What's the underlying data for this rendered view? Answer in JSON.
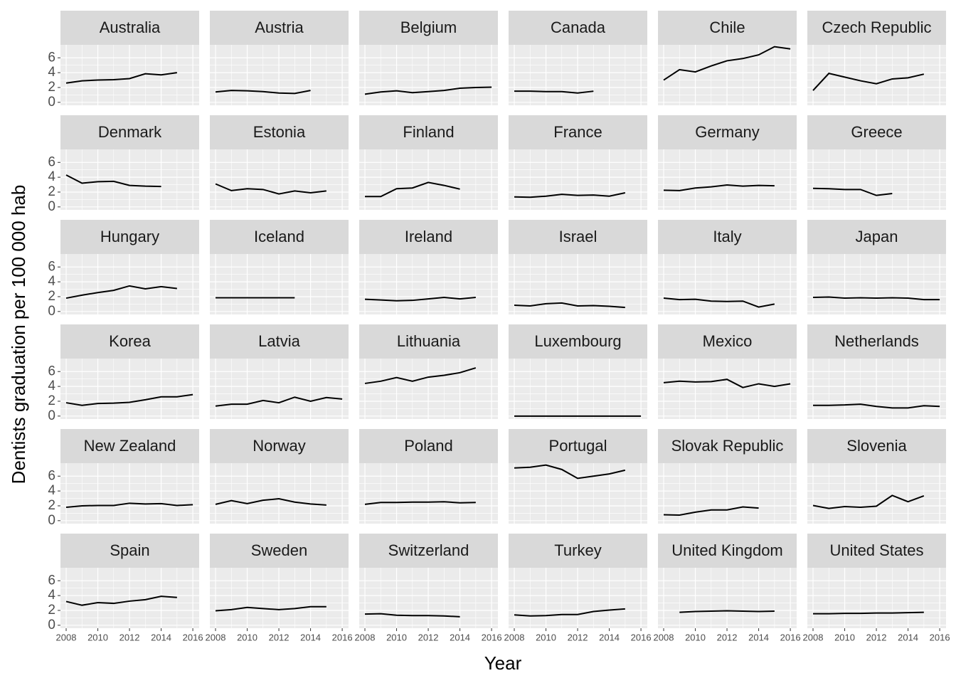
{
  "chart_data": {
    "type": "line",
    "xlabel": "Year",
    "ylabel": "Dentists graduation per 100 000 hab",
    "x": [
      2008,
      2009,
      2010,
      2011,
      2012,
      2013,
      2014,
      2015,
      2016
    ],
    "xlim": [
      2007.64,
      2016.4
    ],
    "xticks": [
      2008,
      2010,
      2012,
      2014,
      2016
    ],
    "ylim": [
      -0.4,
      7.75
    ],
    "yticks": [
      0,
      2,
      4,
      6
    ],
    "grid": true,
    "color": "#000000",
    "facets": [
      {
        "name": "Australia",
        "values": [
          2.6,
          2.9,
          3.0,
          3.05,
          3.2,
          3.85,
          3.7,
          4.0,
          null
        ]
      },
      {
        "name": "Austria",
        "values": [
          1.4,
          1.6,
          1.55,
          1.45,
          1.25,
          1.2,
          1.6,
          null,
          null
        ]
      },
      {
        "name": "Belgium",
        "values": [
          1.1,
          1.4,
          1.55,
          1.3,
          1.45,
          1.6,
          1.9,
          2.0,
          2.05
        ]
      },
      {
        "name": "Canada",
        "values": [
          1.5,
          1.5,
          1.45,
          1.45,
          1.25,
          1.5,
          null,
          null,
          null
        ]
      },
      {
        "name": "Chile",
        "values": [
          3.0,
          4.4,
          4.1,
          4.9,
          5.6,
          5.9,
          6.4,
          7.5,
          7.2
        ]
      },
      {
        "name": "Czech Republic",
        "values": [
          1.6,
          3.9,
          3.4,
          2.9,
          2.5,
          3.15,
          3.3,
          3.8,
          null
        ]
      },
      {
        "name": "Denmark",
        "values": [
          4.3,
          3.2,
          3.4,
          3.45,
          2.9,
          2.8,
          2.75,
          null,
          null
        ]
      },
      {
        "name": "Estonia",
        "values": [
          3.1,
          2.2,
          2.45,
          2.35,
          1.75,
          2.15,
          1.9,
          2.15,
          null
        ]
      },
      {
        "name": "Finland",
        "values": [
          1.4,
          1.4,
          2.45,
          2.55,
          3.3,
          2.9,
          2.4,
          null,
          null
        ]
      },
      {
        "name": "France",
        "values": [
          1.35,
          1.3,
          1.45,
          1.7,
          1.55,
          1.6,
          1.45,
          1.9,
          null
        ]
      },
      {
        "name": "Germany",
        "values": [
          2.25,
          2.2,
          2.55,
          2.7,
          2.95,
          2.8,
          2.9,
          2.85,
          null
        ]
      },
      {
        "name": "Greece",
        "values": [
          2.5,
          2.45,
          2.35,
          2.35,
          1.55,
          1.8,
          null,
          null,
          null
        ]
      },
      {
        "name": "Hungary",
        "values": [
          1.8,
          2.2,
          2.55,
          2.85,
          3.45,
          3.05,
          3.35,
          3.1,
          null
        ]
      },
      {
        "name": "Iceland",
        "values": [
          1.85,
          1.85,
          1.85,
          1.85,
          1.85,
          1.85,
          null,
          null,
          null
        ]
      },
      {
        "name": "Ireland",
        "values": [
          1.65,
          1.55,
          1.45,
          1.5,
          1.7,
          1.9,
          1.7,
          1.9,
          null
        ]
      },
      {
        "name": "Israel",
        "values": [
          0.85,
          0.75,
          1.05,
          1.15,
          0.75,
          0.8,
          0.7,
          0.55,
          null
        ]
      },
      {
        "name": "Italy",
        "values": [
          1.8,
          1.6,
          1.65,
          1.4,
          1.35,
          1.4,
          0.6,
          1.0,
          null
        ]
      },
      {
        "name": "Japan",
        "values": [
          1.9,
          1.95,
          1.8,
          1.85,
          1.8,
          1.85,
          1.8,
          1.6,
          1.6
        ]
      },
      {
        "name": "Korea",
        "values": [
          1.8,
          1.45,
          1.7,
          1.75,
          1.85,
          2.2,
          2.6,
          2.6,
          2.9
        ]
      },
      {
        "name": "Latvia",
        "values": [
          1.35,
          1.6,
          1.6,
          2.1,
          1.8,
          2.55,
          2.0,
          2.5,
          2.3
        ]
      },
      {
        "name": "Lithuania",
        "values": [
          4.4,
          4.7,
          5.2,
          4.7,
          5.25,
          5.5,
          5.85,
          6.5,
          null
        ]
      },
      {
        "name": "Luxembourg",
        "values": [
          0,
          0,
          0,
          0,
          0,
          0,
          0,
          0,
          0
        ]
      },
      {
        "name": "Mexico",
        "values": [
          4.5,
          4.7,
          4.6,
          4.65,
          4.95,
          3.85,
          4.35,
          4.0,
          4.35
        ]
      },
      {
        "name": "Netherlands",
        "values": [
          1.45,
          1.45,
          1.5,
          1.6,
          1.3,
          1.1,
          1.1,
          1.4,
          1.3
        ]
      },
      {
        "name": "New Zealand",
        "values": [
          1.8,
          2.0,
          2.05,
          2.05,
          2.35,
          2.25,
          2.3,
          2.05,
          2.15
        ]
      },
      {
        "name": "Norway",
        "values": [
          2.2,
          2.7,
          2.3,
          2.75,
          2.95,
          2.5,
          2.25,
          2.1,
          null
        ]
      },
      {
        "name": "Poland",
        "values": [
          2.2,
          2.45,
          2.45,
          2.5,
          2.5,
          2.55,
          2.4,
          2.45,
          null
        ]
      },
      {
        "name": "Portugal",
        "values": [
          7.1,
          7.2,
          7.5,
          6.9,
          5.7,
          6.0,
          6.3,
          6.8,
          null
        ]
      },
      {
        "name": "Slovak Republic",
        "values": [
          0.8,
          0.75,
          1.15,
          1.45,
          1.45,
          1.85,
          1.7,
          null,
          null
        ]
      },
      {
        "name": "Slovenia",
        "values": [
          2.05,
          1.65,
          1.9,
          1.8,
          1.95,
          3.4,
          2.55,
          3.35,
          null
        ]
      },
      {
        "name": "Spain",
        "values": [
          3.2,
          2.7,
          3.05,
          2.95,
          3.25,
          3.45,
          3.9,
          3.75,
          null
        ]
      },
      {
        "name": "Sweden",
        "values": [
          1.95,
          2.1,
          2.4,
          2.25,
          2.1,
          2.25,
          2.5,
          2.5,
          null
        ]
      },
      {
        "name": "Switzerland",
        "values": [
          1.5,
          1.55,
          1.35,
          1.3,
          1.3,
          1.25,
          1.15,
          null,
          null
        ]
      },
      {
        "name": "Turkey",
        "values": [
          1.4,
          1.25,
          1.3,
          1.45,
          1.45,
          1.85,
          2.05,
          2.2,
          null
        ]
      },
      {
        "name": "United Kingdom",
        "values": [
          null,
          1.75,
          1.85,
          1.9,
          1.95,
          1.9,
          1.85,
          1.9,
          null
        ]
      },
      {
        "name": "United States",
        "values": [
          1.55,
          1.55,
          1.6,
          1.6,
          1.65,
          1.65,
          1.7,
          1.75,
          null
        ]
      }
    ]
  }
}
